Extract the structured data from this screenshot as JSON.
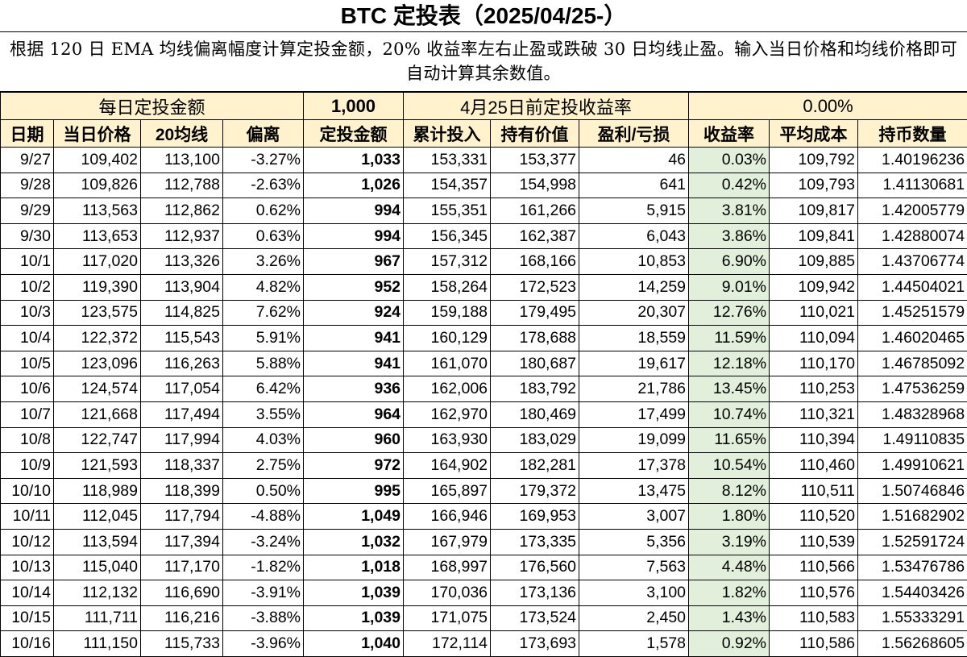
{
  "title": "BTC 定投表（2025/04/25-）",
  "description": "根据 120 日 EMA 均线偏离幅度计算定投金额，20% 收益率左右止盈或跌破 30 日均线止盈。输入当日价格和均线价格即可自动计算其余数值。",
  "summary": {
    "daily_label": "每日定投金额",
    "daily_value": "1,000",
    "return_label": "4月25日前定投收益率",
    "return_value": "0.00%"
  },
  "columns": [
    "日期",
    "当日价格",
    "20均线",
    "偏离",
    "定投金额",
    "累计投入",
    "持有价值",
    "盈利/亏损",
    "收益率",
    "平均成本",
    "持币数量"
  ],
  "rows": [
    [
      "9/27",
      "109,402",
      "113,100",
      "-3.27%",
      "1,033",
      "153,331",
      "153,377",
      "46",
      "0.03%",
      "109,792",
      "1.40196236"
    ],
    [
      "9/28",
      "109,826",
      "112,788",
      "-2.63%",
      "1,026",
      "154,357",
      "154,998",
      "641",
      "0.42%",
      "109,793",
      "1.41130681"
    ],
    [
      "9/29",
      "113,563",
      "112,862",
      "0.62%",
      "994",
      "155,351",
      "161,266",
      "5,915",
      "3.81%",
      "109,817",
      "1.42005779"
    ],
    [
      "9/30",
      "113,653",
      "112,937",
      "0.63%",
      "994",
      "156,345",
      "162,387",
      "6,043",
      "3.86%",
      "109,841",
      "1.42880074"
    ],
    [
      "10/1",
      "117,020",
      "113,326",
      "3.26%",
      "967",
      "157,312",
      "168,166",
      "10,853",
      "6.90%",
      "109,885",
      "1.43706774"
    ],
    [
      "10/2",
      "119,390",
      "113,904",
      "4.82%",
      "952",
      "158,264",
      "172,523",
      "14,259",
      "9.01%",
      "109,942",
      "1.44504021"
    ],
    [
      "10/3",
      "123,575",
      "114,825",
      "7.62%",
      "924",
      "159,188",
      "179,495",
      "20,307",
      "12.76%",
      "110,021",
      "1.45251579"
    ],
    [
      "10/4",
      "122,372",
      "115,543",
      "5.91%",
      "941",
      "160,129",
      "178,688",
      "18,559",
      "11.59%",
      "110,094",
      "1.46020465"
    ],
    [
      "10/5",
      "123,096",
      "116,263",
      "5.88%",
      "941",
      "161,070",
      "180,687",
      "19,617",
      "12.18%",
      "110,170",
      "1.46785092"
    ],
    [
      "10/6",
      "124,574",
      "117,054",
      "6.42%",
      "936",
      "162,006",
      "183,792",
      "21,786",
      "13.45%",
      "110,253",
      "1.47536259"
    ],
    [
      "10/7",
      "121,668",
      "117,494",
      "3.55%",
      "964",
      "162,970",
      "180,469",
      "17,499",
      "10.74%",
      "110,321",
      "1.48328968"
    ],
    [
      "10/8",
      "122,747",
      "117,994",
      "4.03%",
      "960",
      "163,930",
      "183,029",
      "19,099",
      "11.65%",
      "110,394",
      "1.49110835"
    ],
    [
      "10/9",
      "121,593",
      "118,337",
      "2.75%",
      "972",
      "164,902",
      "182,281",
      "17,378",
      "10.54%",
      "110,460",
      "1.49910621"
    ],
    [
      "10/10",
      "118,989",
      "118,399",
      "0.50%",
      "995",
      "165,897",
      "179,372",
      "13,475",
      "8.12%",
      "110,511",
      "1.50746846"
    ],
    [
      "10/11",
      "112,045",
      "117,794",
      "-4.88%",
      "1,049",
      "166,946",
      "169,953",
      "3,007",
      "1.80%",
      "110,520",
      "1.51682902"
    ],
    [
      "10/12",
      "113,594",
      "117,394",
      "-3.24%",
      "1,032",
      "167,979",
      "173,335",
      "5,356",
      "3.19%",
      "110,539",
      "1.52591724"
    ],
    [
      "10/13",
      "115,040",
      "117,170",
      "-1.82%",
      "1,018",
      "168,997",
      "176,560",
      "7,563",
      "4.48%",
      "110,566",
      "1.53476786"
    ],
    [
      "10/14",
      "112,132",
      "116,690",
      "-3.91%",
      "1,039",
      "170,036",
      "173,136",
      "3,100",
      "1.82%",
      "110,576",
      "1.54403426"
    ],
    [
      "10/15",
      "111,711",
      "116,216",
      "-3.88%",
      "1,039",
      "171,075",
      "173,524",
      "2,450",
      "1.43%",
      "110,583",
      "1.55333291"
    ],
    [
      "10/16",
      "111,150",
      "115,733",
      "-3.96%",
      "1,040",
      "172,114",
      "173,693",
      "1,578",
      "0.92%",
      "110,586",
      "1.56268605"
    ]
  ]
}
